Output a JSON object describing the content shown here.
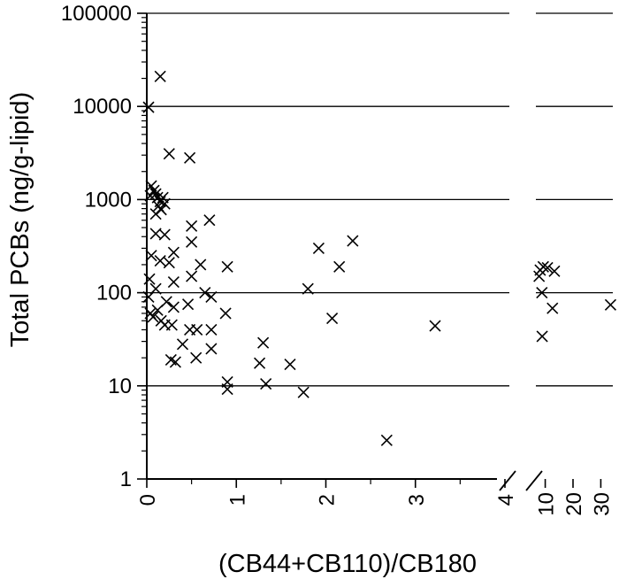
{
  "chart_data": {
    "type": "scatter",
    "title": "",
    "xlabel": "(CB44+CB110)/CB180",
    "ylabel": "Total PCBs (ng/g-lipid)",
    "y_scale": "log",
    "ylim": [
      1,
      100000
    ],
    "y_ticks": [
      "1",
      "10",
      "100",
      "1000",
      "10000",
      "100000"
    ],
    "x_axis_break": true,
    "x_segments": [
      {
        "scale": "linear",
        "range": [
          0,
          4
        ],
        "ticks": [
          "0",
          "1",
          "2",
          "3",
          "4"
        ]
      },
      {
        "scale": "linear",
        "range": [
          6,
          34
        ],
        "ticks": [
          "10",
          "20",
          "30"
        ]
      }
    ],
    "grid": "horizontal",
    "marker": "x",
    "points": [
      [
        0.02,
        9800
      ],
      [
        0.15,
        21000
      ],
      [
        0.25,
        3100
      ],
      [
        0.48,
        2800
      ],
      [
        0.05,
        1400
      ],
      [
        0.08,
        1250
      ],
      [
        0.1,
        1150
      ],
      [
        0.12,
        1050
      ],
      [
        0.15,
        950
      ],
      [
        0.18,
        1050
      ],
      [
        0.2,
        900
      ],
      [
        0.13,
        850
      ],
      [
        0.16,
        780
      ],
      [
        0.1,
        700
      ],
      [
        0.04,
        1100
      ],
      [
        0.7,
        600
      ],
      [
        0.5,
        520
      ],
      [
        0.1,
        430
      ],
      [
        0.2,
        420
      ],
      [
        0.5,
        350
      ],
      [
        0.3,
        270
      ],
      [
        0.05,
        250
      ],
      [
        0.15,
        220
      ],
      [
        0.25,
        210
      ],
      [
        0.6,
        200
      ],
      [
        0.9,
        190
      ],
      [
        0.5,
        150
      ],
      [
        0.03,
        140
      ],
      [
        0.3,
        130
      ],
      [
        0.1,
        110
      ],
      [
        0.65,
        100
      ],
      [
        0.72,
        90
      ],
      [
        0.02,
        90
      ],
      [
        0.22,
        80
      ],
      [
        0.46,
        75
      ],
      [
        0.3,
        70
      ],
      [
        0.12,
        65
      ],
      [
        0.04,
        60
      ],
      [
        0.88,
        60
      ],
      [
        0.07,
        55
      ],
      [
        0.16,
        50
      ],
      [
        0.2,
        45
      ],
      [
        0.28,
        45
      ],
      [
        0.48,
        40
      ],
      [
        0.56,
        40
      ],
      [
        0.72,
        40
      ],
      [
        0.4,
        28
      ],
      [
        0.72,
        25
      ],
      [
        0.55,
        20
      ],
      [
        0.27,
        19
      ],
      [
        0.32,
        18
      ],
      [
        1.3,
        29
      ],
      [
        1.26,
        17.5
      ],
      [
        1.6,
        17
      ],
      [
        0.9,
        11
      ],
      [
        1.33,
        10.5
      ],
      [
        0.9,
        9.2
      ],
      [
        1.75,
        8.5
      ],
      [
        1.8,
        110
      ],
      [
        1.92,
        300
      ],
      [
        2.15,
        190
      ],
      [
        2.3,
        360
      ],
      [
        2.07,
        53
      ],
      [
        3.22,
        44
      ],
      [
        2.68,
        2.6
      ],
      [
        7.8,
        150
      ],
      [
        8.2,
        175
      ],
      [
        9.3,
        190
      ],
      [
        8.8,
        100
      ],
      [
        10.8,
        185
      ],
      [
        8.9,
        34
      ],
      [
        12.6,
        68
      ],
      [
        13.3,
        170
      ],
      [
        33.5,
        74
      ]
    ]
  }
}
